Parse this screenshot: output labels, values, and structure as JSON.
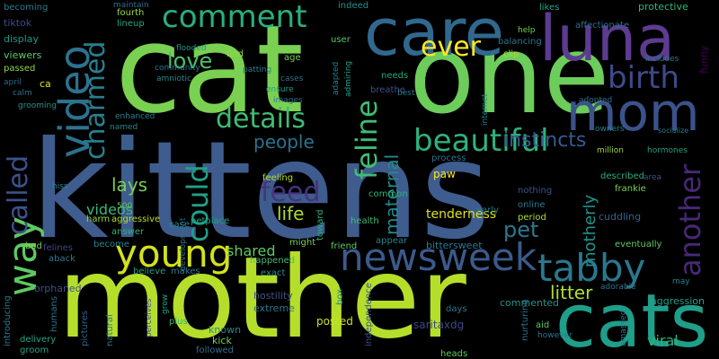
{
  "words": [
    {
      "text": "kittens",
      "color": "#3e5c8d"
    },
    {
      "text": "mother",
      "color": "#b5de2b"
    },
    {
      "text": "cat",
      "color": "#7ad151"
    },
    {
      "text": "one",
      "color": "#6ccd5a"
    },
    {
      "text": "cats",
      "color": "#1f9e89"
    },
    {
      "text": "care",
      "color": "#31688e"
    },
    {
      "text": "luna",
      "color": "#5d3b91"
    },
    {
      "text": "mom",
      "color": "#3b528b"
    },
    {
      "text": "video",
      "color": "#2c728e"
    },
    {
      "text": "newsweek",
      "color": "#3b5a8c"
    },
    {
      "text": "young",
      "color": "#d2e21b"
    },
    {
      "text": "tabby",
      "color": "#2a788e"
    },
    {
      "text": "way",
      "color": "#5ec962"
    },
    {
      "text": "comment",
      "color": "#29af7f"
    },
    {
      "text": "birth",
      "color": "#3e4a89"
    },
    {
      "text": "beautiful",
      "color": "#2db27d"
    },
    {
      "text": "another",
      "color": "#482878"
    },
    {
      "text": "could",
      "color": "#1fa188"
    },
    {
      "text": "feline",
      "color": "#3fbc73"
    },
    {
      "text": "charmed",
      "color": "#277f8e"
    },
    {
      "text": "called",
      "color": "#3b528b"
    },
    {
      "text": "ever",
      "color": "#fde725"
    },
    {
      "text": "details",
      "color": "#3fbc73"
    },
    {
      "text": "feed",
      "color": "#46337e"
    },
    {
      "text": "love",
      "color": "#4ac16d"
    },
    {
      "text": "instincts",
      "color": "#375b8d"
    },
    {
      "text": "pet",
      "color": "#2a788e"
    },
    {
      "text": "people",
      "color": "#2c728e"
    },
    {
      "text": "life",
      "color": "#addc30"
    },
    {
      "text": "litter",
      "color": "#b5de2b"
    },
    {
      "text": "maternal",
      "color": "#238a8d"
    },
    {
      "text": "lays",
      "color": "#7ad151"
    },
    {
      "text": "tenderness",
      "color": "#dde318"
    },
    {
      "text": "motherly",
      "color": "#20928c"
    },
    {
      "text": "videos",
      "color": "#38b977"
    },
    {
      "text": "shared",
      "color": "#5ec962"
    },
    {
      "text": "viral",
      "color": "#2db27d"
    },
    {
      "text": "posted",
      "color": "#cae11f"
    },
    {
      "text": "saritaxdg",
      "color": "#3f4788"
    },
    {
      "text": "aggression",
      "color": "#1fa188"
    },
    {
      "text": "commented",
      "color": "#21918c"
    },
    {
      "text": "hostility",
      "color": "#3b528b"
    },
    {
      "text": "extreme",
      "color": "#2a788e"
    },
    {
      "text": "kick",
      "color": "#73d056"
    },
    {
      "text": "known",
      "color": "#238a8d"
    },
    {
      "text": "orphaned",
      "color": "#3c4f8a"
    },
    {
      "text": "aggressive",
      "color": "#b8de29"
    },
    {
      "text": "answer",
      "color": "#2db27d"
    },
    {
      "text": "become",
      "color": "#25848e"
    },
    {
      "text": "felines",
      "color": "#404688"
    },
    {
      "text": "bad",
      "color": "#7ad151"
    },
    {
      "text": "aback",
      "color": "#2a788e"
    },
    {
      "text": "believe",
      "color": "#1f9e89"
    },
    {
      "text": "makes",
      "color": "#2a788e"
    },
    {
      "text": "petplace",
      "color": "#20a386"
    },
    {
      "text": "case",
      "color": "#23898e"
    },
    {
      "text": "harm",
      "color": "#95d840"
    },
    {
      "text": "500",
      "color": "#63cb5f"
    },
    {
      "text": "viewers",
      "color": "#5ec962"
    },
    {
      "text": "passed",
      "color": "#8ed645"
    },
    {
      "text": "tiktok",
      "color": "#3e4989"
    },
    {
      "text": "display",
      "color": "#1f968b"
    },
    {
      "text": "becoming",
      "color": "#287d8e"
    },
    {
      "text": "april",
      "color": "#31678e"
    },
    {
      "text": "calm",
      "color": "#2e6f8e"
    },
    {
      "text": "grooming",
      "color": "#1f968b"
    },
    {
      "text": "ca",
      "color": "#dfe318"
    },
    {
      "text": "enhanced",
      "color": "#277f8e"
    },
    {
      "text": "named",
      "color": "#238a8d"
    },
    {
      "text": "hiss",
      "color": "#24878e"
    },
    {
      "text": "fourth",
      "color": "#95d840"
    },
    {
      "text": "lineup",
      "color": "#22a785"
    },
    {
      "text": "maintain",
      "color": "#2d708e"
    },
    {
      "text": "community",
      "color": "#2a788e"
    },
    {
      "text": "flooded",
      "color": "#1f968b"
    },
    {
      "text": "amniotic",
      "color": "#228c8d"
    },
    {
      "text": "find",
      "color": "#95d840"
    },
    {
      "text": "age",
      "color": "#73d056"
    },
    {
      "text": "patting",
      "color": "#26828e"
    },
    {
      "text": "cases",
      "color": "#2d708e"
    },
    {
      "text": "ensure",
      "color": "#1f9e89"
    },
    {
      "text": "images",
      "color": "#2c718e"
    },
    {
      "text": "indeed",
      "color": "#21918c"
    },
    {
      "text": "user",
      "color": "#54c568"
    },
    {
      "text": "adapted",
      "color": "#277f8e"
    },
    {
      "text": "admiring",
      "color": "#1fa188"
    },
    {
      "text": "breathe",
      "color": "#3b528b"
    },
    {
      "text": "needs",
      "color": "#22a785"
    },
    {
      "text": "balancing",
      "color": "#2a788e"
    },
    {
      "text": "clip",
      "color": "#addc30"
    },
    {
      "text": "help",
      "color": "#7ad151"
    },
    {
      "text": "best",
      "color": "#2a788e"
    },
    {
      "text": "likes",
      "color": "#1fa188"
    },
    {
      "text": "affectionate",
      "color": "#2d708e"
    },
    {
      "text": "protective",
      "color": "#31b57b"
    },
    {
      "text": "funny",
      "color": "#440154"
    },
    {
      "text": "includes",
      "color": "#2a788e"
    },
    {
      "text": "adopted",
      "color": "#2e6e8e"
    },
    {
      "text": "owners",
      "color": "#277f8e"
    },
    {
      "text": "socialize",
      "color": "#287c8e"
    },
    {
      "text": "hormones",
      "color": "#1f9e89"
    },
    {
      "text": "million",
      "color": "#9bd93c"
    },
    {
      "text": "described",
      "color": "#29af7f"
    },
    {
      "text": "frankie",
      "color": "#7ad151"
    },
    {
      "text": "area",
      "color": "#3b528b"
    },
    {
      "text": "cuddling",
      "color": "#33638d"
    },
    {
      "text": "eventually",
      "color": "#5ec962"
    },
    {
      "text": "may",
      "color": "#26828e"
    },
    {
      "text": "adorable",
      "color": "#2b758e"
    },
    {
      "text": "aid",
      "color": "#5ec962"
    },
    {
      "text": "however",
      "color": "#2a788e"
    },
    {
      "text": "amassed",
      "color": "#2c728e"
    },
    {
      "text": "period",
      "color": "#addc30"
    },
    {
      "text": "online",
      "color": "#2a788e"
    },
    {
      "text": "nothing",
      "color": "#3b528b"
    },
    {
      "text": "paw",
      "color": "#fde725"
    },
    {
      "text": "process",
      "color": "#2c728e"
    },
    {
      "text": "internet",
      "color": "#228c8d"
    },
    {
      "text": "early",
      "color": "#2a788e"
    },
    {
      "text": "common",
      "color": "#2db27d"
    },
    {
      "text": "health",
      "color": "#3fbc73"
    },
    {
      "text": "appear",
      "color": "#26828e"
    },
    {
      "text": "friend",
      "color": "#5ec962"
    },
    {
      "text": "bittersweet",
      "color": "#2a788e"
    },
    {
      "text": "independence",
      "color": "#3b528b"
    },
    {
      "text": "nurturing",
      "color": "#2c728e"
    },
    {
      "text": "days",
      "color": "#2a788e"
    },
    {
      "text": "heads",
      "color": "#63cb5f"
    },
    {
      "text": "toward",
      "color": "#2db27d"
    },
    {
      "text": "might",
      "color": "#7ad151"
    },
    {
      "text": "feeling",
      "color": "#b5de2b"
    },
    {
      "text": "happened",
      "color": "#3fbc73"
    },
    {
      "text": "exact",
      "color": "#20928c"
    },
    {
      "text": "box",
      "color": "#26828e"
    },
    {
      "text": "plus",
      "color": "#2db27d"
    },
    {
      "text": "followed",
      "color": "#2c728e"
    },
    {
      "text": "grow",
      "color": "#20a386"
    },
    {
      "text": "perceives",
      "color": "#3b528b"
    },
    {
      "text": "natural",
      "color": "#2a788e"
    },
    {
      "text": "pictures",
      "color": "#33638d"
    },
    {
      "text": "humans",
      "color": "#2c728e"
    },
    {
      "text": "introducing",
      "color": "#2a788e"
    },
    {
      "text": "delivery",
      "color": "#22a785"
    },
    {
      "text": "groom",
      "color": "#20a386"
    },
    {
      "text": "development",
      "color": "#2c728e"
    },
    {
      "text": "people",
      "color": "#2c728e"
    }
  ]
}
